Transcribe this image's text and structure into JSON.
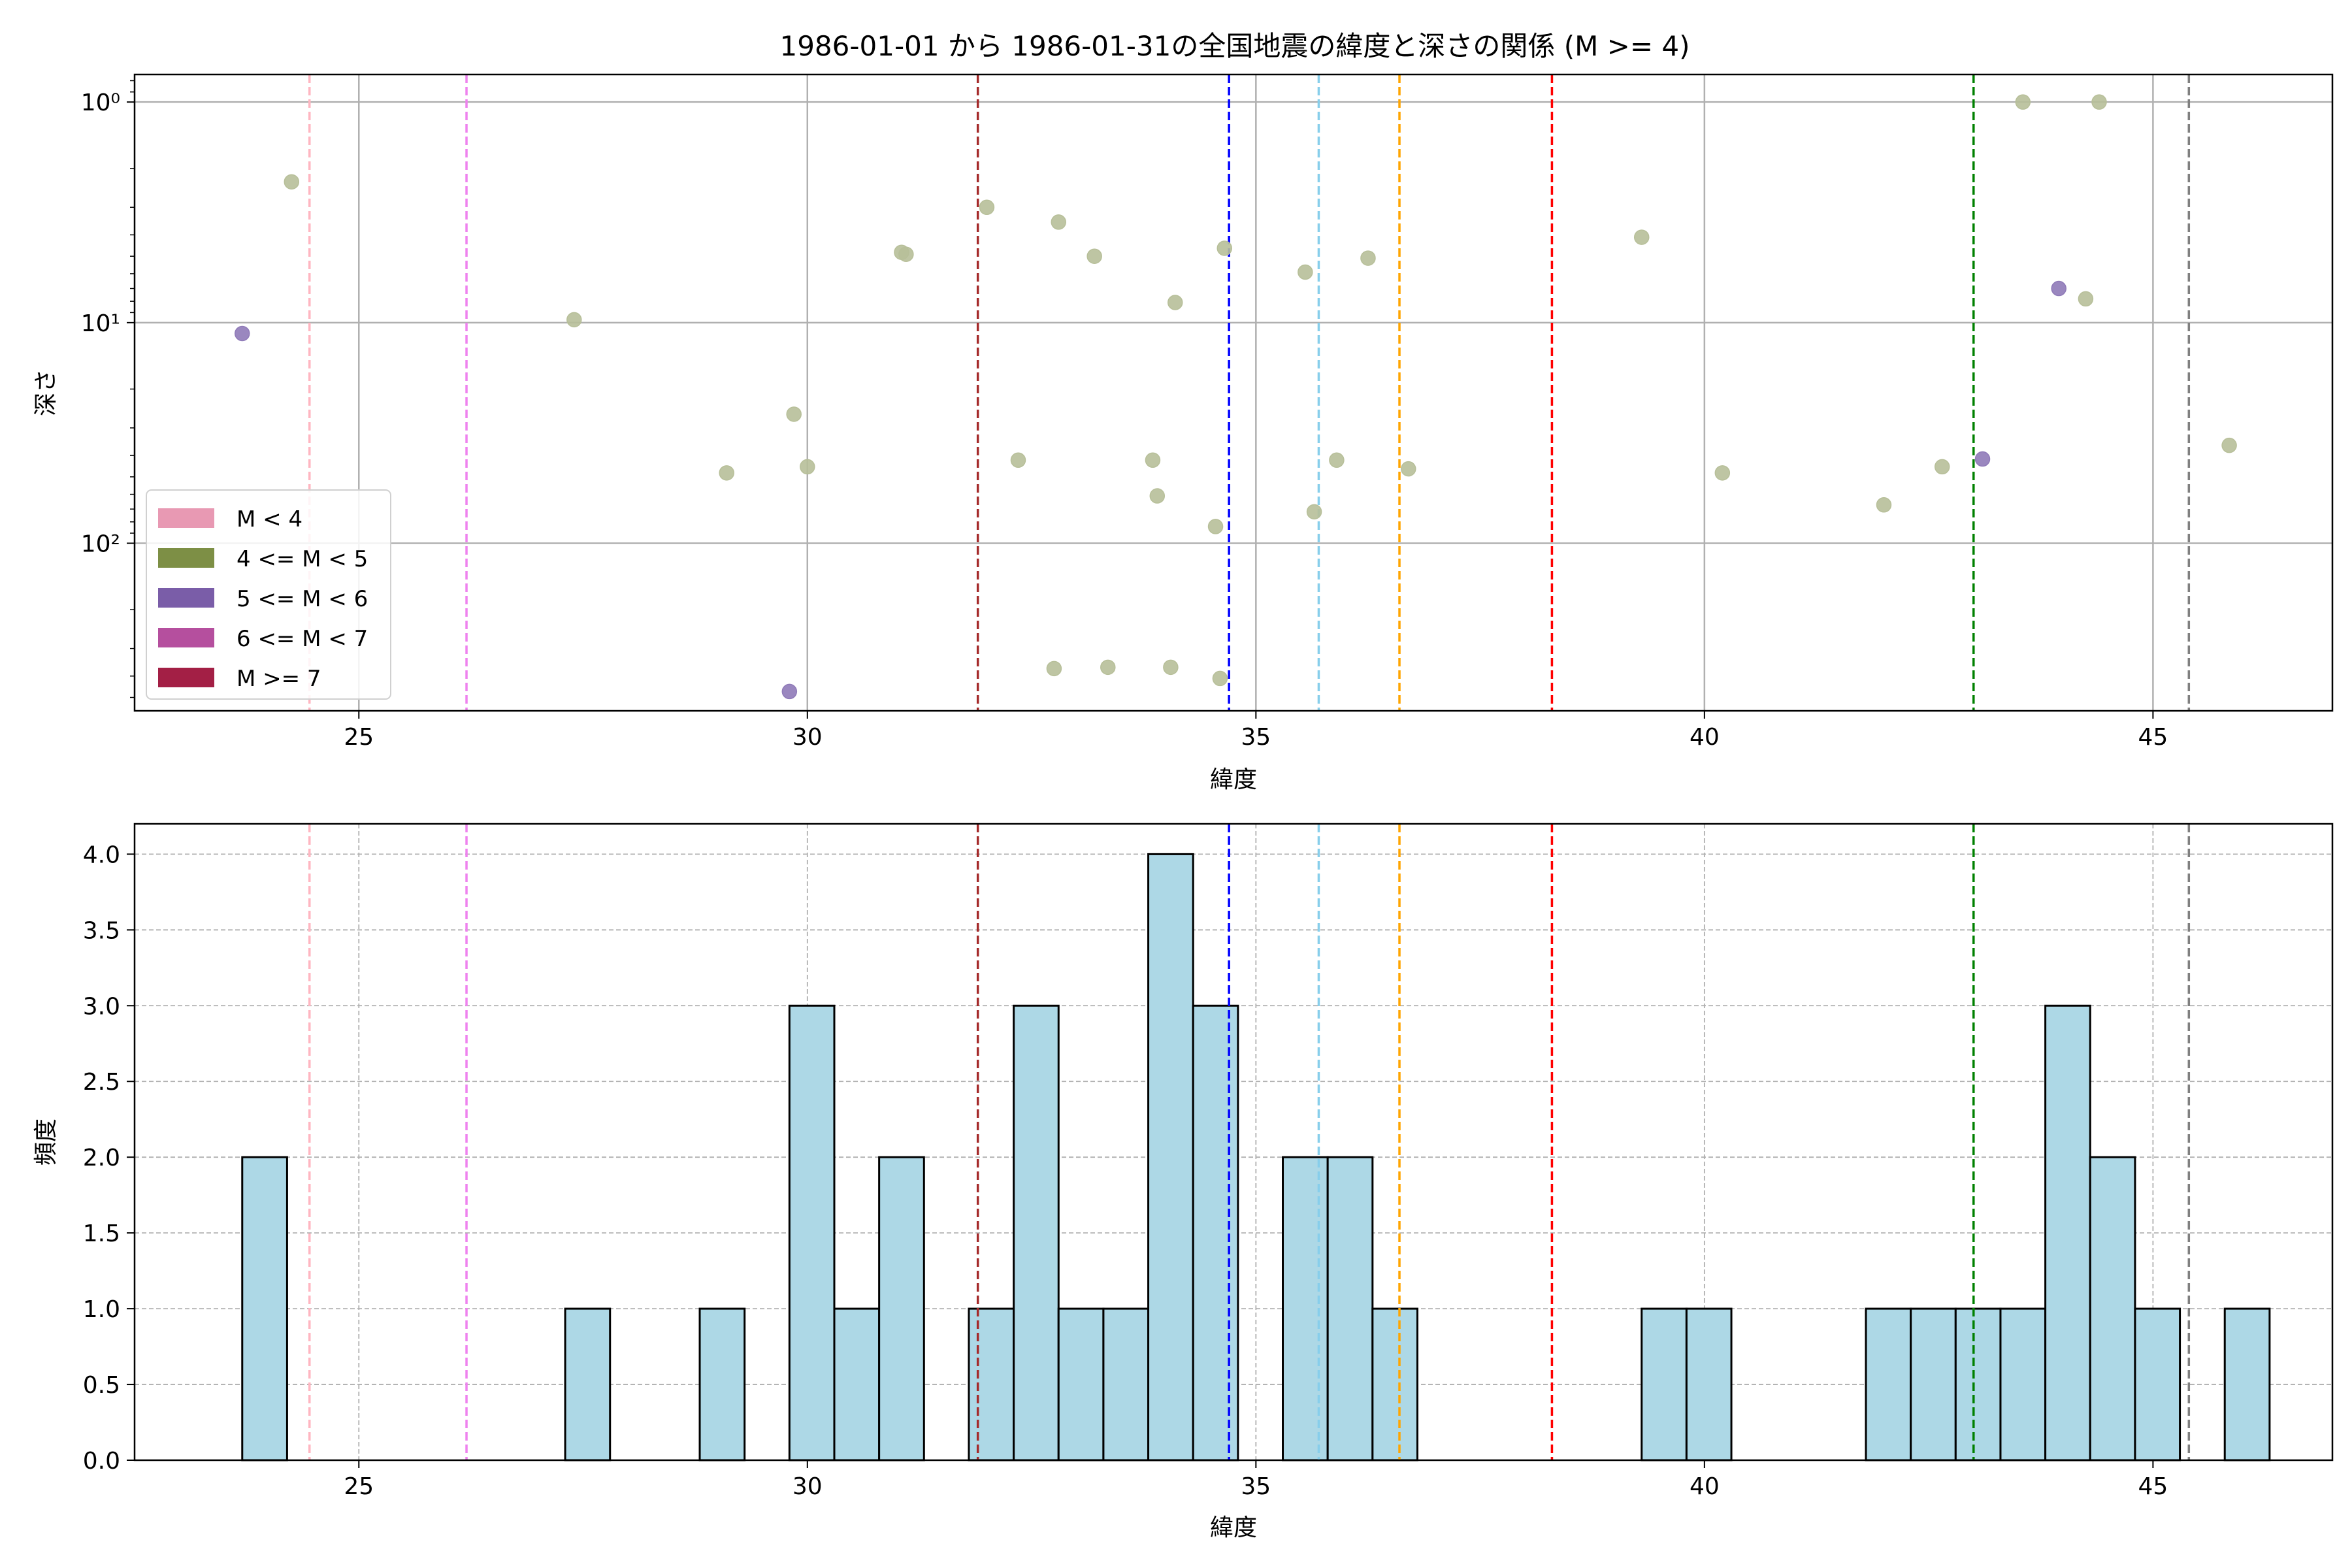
{
  "chart_data": [
    {
      "type": "scatter",
      "title": "1986-01-01 から 1986-01-31の全国地震の緯度と深さの関係 (M >= 4)",
      "xlabel": "緯度",
      "ylabel": "深さ",
      "xlim": [
        22.5,
        47.0
      ],
      "ylim": [
        575,
        0.75
      ],
      "yscale": "log",
      "y_inverted": true,
      "grid": true,
      "xticks": [
        25,
        30,
        35,
        40,
        45
      ],
      "yticks": [
        {
          "value": 1,
          "label": "10⁰"
        },
        {
          "value": 10,
          "label": "10¹"
        },
        {
          "value": 100,
          "label": "10²"
        }
      ],
      "legend_position": "lower-left",
      "legend": [
        {
          "label": "M < 4",
          "color": "#e899b3"
        },
        {
          "label": "4 <= M < 5",
          "color": "#7d8f45"
        },
        {
          "label": "5 <= M < 6",
          "color": "#7a5da8"
        },
        {
          "label": "6 <= M < 7",
          "color": "#b54f9e"
        },
        {
          "label": "M >= 7",
          "color": "#a31f45"
        }
      ],
      "vlines": [
        {
          "x": 24.45,
          "color": "#ffb6c1"
        },
        {
          "x": 26.2,
          "color": "#ee82ee"
        },
        {
          "x": 31.9,
          "color": "#a52a2a"
        },
        {
          "x": 34.7,
          "color": "#0000ff"
        },
        {
          "x": 35.7,
          "color": "#87ceeb"
        },
        {
          "x": 36.6,
          "color": "#ffa500"
        },
        {
          "x": 38.3,
          "color": "#ff0000"
        },
        {
          "x": 43.0,
          "color": "#008000"
        },
        {
          "x": 45.4,
          "color": "#808080"
        }
      ],
      "series": [
        {
          "color": "#b7bf99",
          "points": [
            [
              24.25,
              2.3
            ],
            [
              27.4,
              9.7
            ],
            [
              29.1,
              48
            ],
            [
              29.85,
              26
            ],
            [
              30.0,
              45
            ],
            [
              31.05,
              4.8
            ],
            [
              31.1,
              4.9
            ],
            [
              32.0,
              3.0
            ],
            [
              32.35,
              42
            ],
            [
              32.75,
              370
            ],
            [
              32.8,
              3.5
            ],
            [
              33.2,
              5.0
            ],
            [
              33.35,
              365
            ],
            [
              33.85,
              42
            ],
            [
              33.9,
              61
            ],
            [
              34.05,
              365
            ],
            [
              34.1,
              8.1
            ],
            [
              34.55,
              84
            ],
            [
              34.6,
              410
            ],
            [
              34.65,
              4.6
            ],
            [
              35.55,
              5.9
            ],
            [
              35.65,
              72
            ],
            [
              35.9,
              42
            ],
            [
              36.25,
              5.1
            ],
            [
              36.7,
              46
            ],
            [
              39.3,
              4.1
            ],
            [
              40.2,
              48
            ],
            [
              42.0,
              67
            ],
            [
              42.65,
              45
            ],
            [
              43.55,
              1.0
            ],
            [
              44.25,
              7.8
            ],
            [
              44.4,
              1.0
            ],
            [
              45.85,
              36
            ]
          ]
        },
        {
          "color": "#8f7ab8",
          "points": [
            [
              23.7,
              11.2
            ],
            [
              29.8,
              470
            ],
            [
              43.1,
              41.5
            ],
            [
              43.95,
              7.0
            ]
          ]
        }
      ]
    },
    {
      "type": "bar",
      "title": "",
      "xlabel": "緯度",
      "ylabel": "頻度",
      "xlim": [
        22.5,
        47.0
      ],
      "ylim": [
        0,
        4.2
      ],
      "grid": true,
      "xticks": [
        25,
        30,
        35,
        40,
        45
      ],
      "yticks": [
        0.0,
        0.5,
        1.0,
        1.5,
        2.0,
        2.5,
        3.0,
        3.5,
        4.0
      ],
      "bar_color": "#add8e6",
      "bin_width": 0.5,
      "bins": [
        [
          23.7,
          2
        ],
        [
          27.3,
          1
        ],
        [
          28.8,
          1
        ],
        [
          29.8,
          3
        ],
        [
          30.3,
          1
        ],
        [
          30.8,
          2
        ],
        [
          31.8,
          1
        ],
        [
          32.3,
          3
        ],
        [
          32.8,
          1
        ],
        [
          33.3,
          1
        ],
        [
          33.8,
          4
        ],
        [
          34.3,
          3
        ],
        [
          35.3,
          2
        ],
        [
          35.8,
          2
        ],
        [
          36.3,
          1
        ],
        [
          39.3,
          1
        ],
        [
          39.8,
          1
        ],
        [
          41.8,
          1
        ],
        [
          42.3,
          1
        ],
        [
          42.8,
          1
        ],
        [
          43.3,
          1
        ],
        [
          43.8,
          3
        ],
        [
          44.3,
          2
        ],
        [
          44.8,
          1
        ],
        [
          45.8,
          1
        ]
      ],
      "vlines": [
        {
          "x": 24.45,
          "color": "#ffb6c1"
        },
        {
          "x": 26.2,
          "color": "#ee82ee"
        },
        {
          "x": 31.9,
          "color": "#a52a2a"
        },
        {
          "x": 34.7,
          "color": "#0000ff"
        },
        {
          "x": 35.7,
          "color": "#87ceeb"
        },
        {
          "x": 36.6,
          "color": "#ffa500"
        },
        {
          "x": 38.3,
          "color": "#ff0000"
        },
        {
          "x": 43.0,
          "color": "#008000"
        },
        {
          "x": 45.4,
          "color": "#808080"
        }
      ]
    }
  ]
}
